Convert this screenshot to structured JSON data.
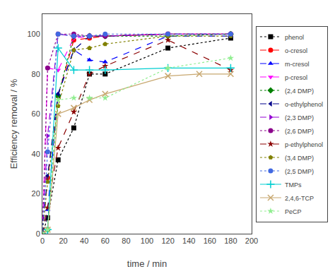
{
  "chart_data": {
    "type": "line",
    "x_label": "time / min",
    "y_label": "Efficiency removal / %",
    "xlim": [
      0,
      200
    ],
    "ylim": [
      0,
      110
    ],
    "xticks": [
      0,
      20,
      40,
      60,
      80,
      100,
      120,
      140,
      160,
      180,
      200
    ],
    "yticks": [
      0,
      20,
      40,
      60,
      80,
      100
    ],
    "grid": false,
    "legend": "right",
    "series": [
      {
        "name": "phenol",
        "color": "#000000",
        "marker": "square",
        "line_style": "dotted",
        "x": [
          0,
          5,
          15,
          30,
          45,
          60,
          120,
          180
        ],
        "values": [
          0,
          8,
          37,
          53,
          80,
          80,
          93,
          98
        ]
      },
      {
        "name": "o-cresol",
        "color": "#ff0000",
        "marker": "circle",
        "line_style": "dashed",
        "x": [
          0,
          5,
          15,
          30,
          45,
          60,
          120,
          180
        ],
        "values": [
          0,
          28,
          69,
          97,
          98,
          99,
          100,
          100
        ]
      },
      {
        "name": "m-cresol",
        "color": "#0000ff",
        "marker": "triangle-up",
        "line_style": "dashed",
        "x": [
          0,
          5,
          15,
          30,
          45,
          60,
          120,
          180
        ],
        "values": [
          0,
          12,
          70,
          92,
          87,
          86,
          99,
          99
        ]
      },
      {
        "name": "p-cresol",
        "color": "#ff00ff",
        "marker": "triangle-down",
        "line_style": "dashed",
        "x": [
          0,
          5,
          15,
          30,
          45,
          60,
          120,
          180
        ],
        "values": [
          0,
          83,
          82,
          98,
          99,
          99,
          100,
          100
        ]
      },
      {
        "name": "(2,4 DMP)",
        "color": "#008000",
        "marker": "diamond",
        "line_style": "dotted",
        "x": [
          0,
          5,
          15,
          30,
          45,
          60,
          120,
          180
        ],
        "values": [
          0,
          2,
          69,
          99,
          99,
          99,
          99,
          100
        ]
      },
      {
        "name": "o-ethylphenol",
        "color": "#00008b",
        "marker": "triangle-left",
        "line_style": "dashed",
        "x": [
          0,
          5,
          15,
          30,
          45,
          60,
          120,
          180
        ],
        "values": [
          0,
          29,
          70,
          92,
          99,
          99,
          100,
          100
        ]
      },
      {
        "name": "(2,3 DMP)",
        "color": "#9400d3",
        "marker": "triangle-right",
        "line_style": "dashed",
        "x": [
          0,
          5,
          15,
          30,
          45,
          60,
          120,
          180
        ],
        "values": [
          0,
          49,
          100,
          99,
          99,
          99,
          100,
          100
        ]
      },
      {
        "name": "(2,6 DMP)",
        "color": "#8b008b",
        "marker": "circle",
        "line_style": "dotted",
        "x": [
          0,
          5,
          15,
          30,
          45,
          60,
          120,
          180
        ],
        "values": [
          0,
          83,
          100,
          100,
          99,
          99,
          100,
          100
        ]
      },
      {
        "name": "p-ethylphenol",
        "color": "#8b0000",
        "marker": "star",
        "line_style": "dashed",
        "x": [
          0,
          5,
          15,
          30,
          45,
          60,
          120,
          180
        ],
        "values": [
          0,
          13,
          43,
          61,
          80,
          84,
          97,
          82
        ]
      },
      {
        "name": "(3,4 DMP)",
        "color": "#808000",
        "marker": "pentagon",
        "line_style": "dotted",
        "x": [
          0,
          5,
          15,
          30,
          45,
          60,
          120,
          180
        ],
        "values": [
          0,
          26,
          64,
          92,
          93,
          95,
          99,
          99
        ]
      },
      {
        "name": "(2,5 DMP)",
        "color": "#4169e1",
        "marker": "circle",
        "line_style": "dotted",
        "x": [
          0,
          5,
          15,
          30,
          45,
          60,
          120,
          180
        ],
        "values": [
          0,
          41,
          100,
          99,
          99,
          100,
          100,
          100
        ]
      },
      {
        "name": "TMPs",
        "color": "#00ced1",
        "marker": "cross",
        "line_style": "solid",
        "x": [
          0,
          5,
          15,
          30,
          45,
          60,
          120,
          180
        ],
        "values": [
          0,
          2,
          93,
          82,
          82,
          82,
          83,
          83
        ]
      },
      {
        "name": "2,4,6-TCP",
        "color": "#c8a870",
        "marker": "x",
        "line_style": "solid",
        "x": [
          0,
          5,
          15,
          30,
          45,
          60,
          120,
          150,
          180
        ],
        "values": [
          0,
          2,
          60,
          63,
          67,
          70,
          79,
          80,
          80
        ]
      },
      {
        "name": "PeCP",
        "color": "#90ee90",
        "marker": "star",
        "line_style": "dotted",
        "x": [
          0,
          5,
          15,
          30,
          45,
          60,
          120,
          180
        ],
        "values": [
          0,
          2,
          67,
          68,
          68,
          68,
          83,
          88
        ]
      }
    ]
  }
}
